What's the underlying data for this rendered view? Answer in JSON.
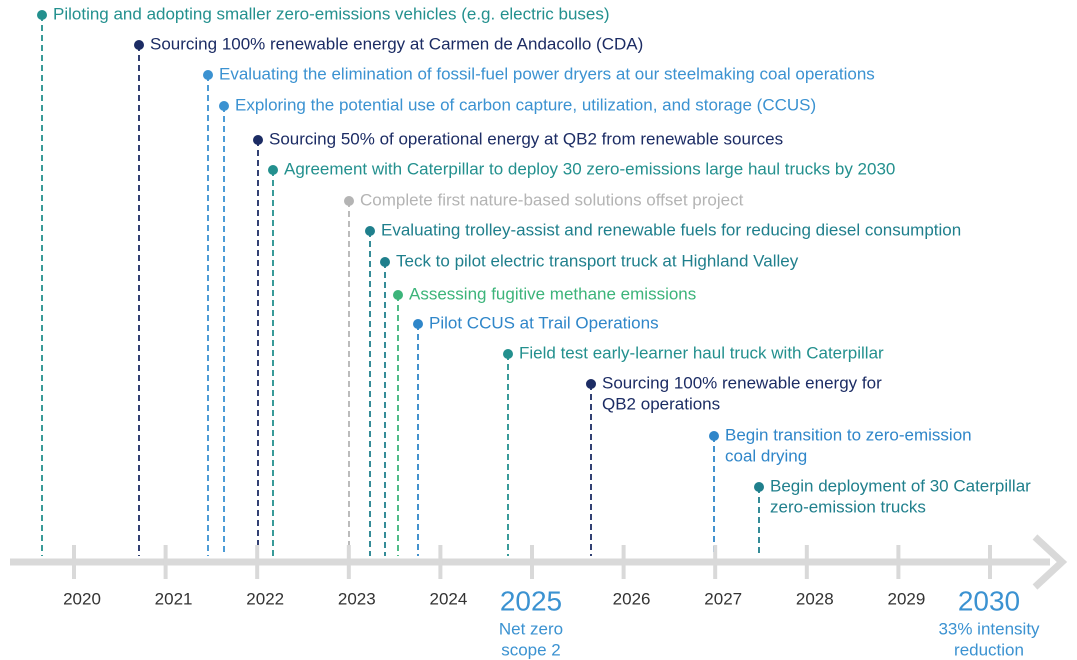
{
  "events": [
    {
      "lines": [
        "Piloting and adopting smaller zero-emissions vehicles (e.g. electric buses)"
      ],
      "color": "#23908e"
    },
    {
      "lines": [
        "Sourcing 100% renewable energy at Carmen de Andacollo (CDA)"
      ],
      "color": "#1c2c64"
    },
    {
      "lines": [
        "Evaluating the elimination of fossil-fuel power dryers at our steelmaking coal operations"
      ],
      "color": "#3b92d1"
    },
    {
      "lines": [
        "Exploring the potential use of carbon capture, utilization, and storage (CCUS)"
      ],
      "color": "#3b92d1"
    },
    {
      "lines": [
        "Sourcing 50% of operational energy at QB2 from renewable sources"
      ],
      "color": "#1c2c64"
    },
    {
      "lines": [
        "Agreement with Caterpillar to deploy 30 zero-emissions large haul trucks by 2030"
      ],
      "color": "#23908e"
    },
    {
      "lines": [
        "Complete first nature-based solutions offset project"
      ],
      "color": "#b4b4b4"
    },
    {
      "lines": [
        "Evaluating trolley-assist and renewable fuels for reducing diesel consumption"
      ],
      "color": "#1f7f8c"
    },
    {
      "lines": [
        "Teck to pilot electric transport truck at Highland Valley"
      ],
      "color": "#1f7f8c"
    },
    {
      "lines": [
        "Assessing fugitive methane emissions"
      ],
      "color": "#3cb47a"
    },
    {
      "lines": [
        "Pilot CCUS at Trail Operations"
      ],
      "color": "#2f86c9"
    },
    {
      "lines": [
        "Field test early-learner haul truck with Caterpillar"
      ],
      "color": "#23908e"
    },
    {
      "lines": [
        "Sourcing 100% renewable energy for",
        "QB2 operations"
      ],
      "color": "#1c2c64"
    },
    {
      "lines": [
        "Begin transition to zero-emission",
        "coal drying"
      ],
      "color": "#2f86c9"
    },
    {
      "lines": [
        "Begin deployment of 30 Caterpillar",
        "zero-emission trucks"
      ],
      "color": "#1f7f8c"
    }
  ],
  "years": [
    {
      "label": "2020"
    },
    {
      "label": "2021"
    },
    {
      "label": "2022"
    },
    {
      "label": "2023"
    },
    {
      "label": "2024"
    },
    {
      "label": "2025",
      "caption": [
        "Net zero",
        "scope 2"
      ]
    },
    {
      "label": "2026"
    },
    {
      "label": "2027"
    },
    {
      "label": "2028"
    },
    {
      "label": "2029"
    },
    {
      "label": "2030",
      "caption": [
        "33% intensity",
        "reduction"
      ]
    }
  ]
}
